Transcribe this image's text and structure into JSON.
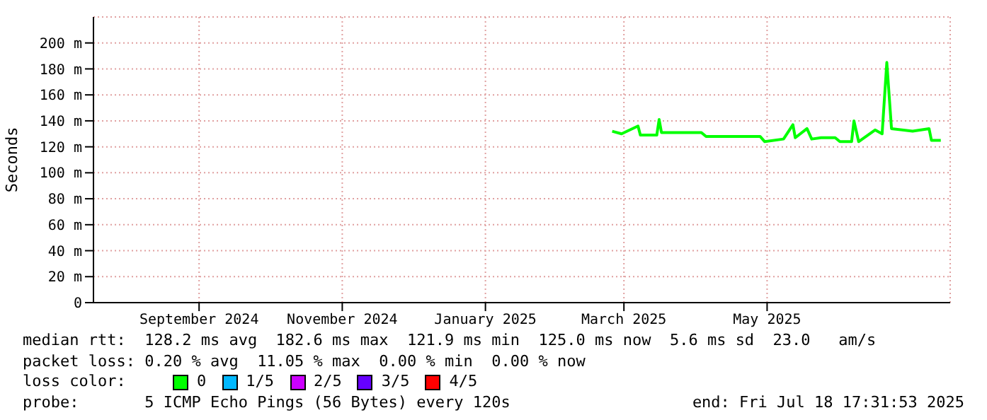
{
  "chart_data": {
    "type": "line",
    "ylabel": "Seconds",
    "x": [
      "2025-02-24",
      "2025-02-28",
      "2025-03-07",
      "2025-03-08",
      "2025-03-15",
      "2025-03-16",
      "2025-03-17",
      "2025-04-03",
      "2025-04-05",
      "2025-04-28",
      "2025-04-30",
      "2025-05-08",
      "2025-05-12",
      "2025-05-13",
      "2025-05-18",
      "2025-05-20",
      "2025-05-24",
      "2025-05-30",
      "2025-06-01",
      "2025-06-06",
      "2025-06-07",
      "2025-06-09",
      "2025-06-16",
      "2025-06-19",
      "2025-06-21",
      "2025-06-23",
      "2025-07-02",
      "2025-07-09",
      "2025-07-10",
      "2025-07-14"
    ],
    "series": [
      {
        "name": "0",
        "color": "#00ff00",
        "values": [
          132,
          130,
          136,
          129,
          129,
          141,
          131,
          131,
          128,
          128,
          124,
          126,
          137,
          127,
          134,
          126,
          127,
          127,
          124,
          124,
          140,
          124,
          133,
          130,
          185,
          134,
          132,
          134,
          125,
          125
        ]
      },
      {
        "name": "1/5",
        "color": "#00b8ff",
        "values": [
          null,
          null,
          null,
          null,
          null,
          null,
          null,
          null,
          null,
          null,
          null,
          null,
          null,
          null,
          null,
          null,
          null,
          null,
          null,
          null,
          null,
          null,
          null,
          null,
          null,
          null,
          null,
          null,
          null,
          null
        ]
      },
      {
        "name": "2/5",
        "color": "#cc00ff",
        "values": [
          null,
          null,
          null,
          null,
          null,
          null,
          null,
          null,
          null,
          null,
          null,
          null,
          null,
          null,
          null,
          null,
          null,
          null,
          null,
          null,
          null,
          null,
          null,
          null,
          null,
          null,
          null,
          null,
          null,
          null
        ]
      },
      {
        "name": "3/5",
        "color": "#6600ff",
        "values": [
          null,
          null,
          null,
          null,
          null,
          null,
          null,
          null,
          null,
          null,
          null,
          null,
          null,
          null,
          null,
          null,
          null,
          null,
          null,
          null,
          null,
          null,
          null,
          null,
          null,
          null,
          null,
          null,
          null,
          null
        ]
      },
      {
        "name": "4/5",
        "color": "#ff0000",
        "values": [
          null,
          null,
          null,
          null,
          null,
          null,
          null,
          null,
          null,
          null,
          null,
          null,
          null,
          null,
          null,
          null,
          null,
          null,
          null,
          null,
          null,
          null,
          null,
          null,
          null,
          null,
          null,
          null,
          null,
          null
        ]
      }
    ],
    "xlim": [
      "2024-07-18",
      "2025-07-18"
    ],
    "xticks": [
      {
        "value": "2024-09-01",
        "label": "September 2024"
      },
      {
        "value": "2024-11-01",
        "label": "November 2024"
      },
      {
        "value": "2025-01-01",
        "label": "January 2025"
      },
      {
        "value": "2025-03-01",
        "label": "March 2025"
      },
      {
        "value": "2025-05-01",
        "label": "May 2025"
      }
    ],
    "ylim": [
      0,
      220
    ],
    "yticks": [
      {
        "value": 0,
        "label": "0"
      },
      {
        "value": 20,
        "label": "20 m"
      },
      {
        "value": 40,
        "label": "40 m"
      },
      {
        "value": 60,
        "label": "60 m"
      },
      {
        "value": 80,
        "label": "80 m"
      },
      {
        "value": 100,
        "label": "100 m"
      },
      {
        "value": 120,
        "label": "120 m"
      },
      {
        "value": 140,
        "label": "140 m"
      },
      {
        "value": 160,
        "label": "160 m"
      },
      {
        "value": 180,
        "label": "180 m"
      },
      {
        "value": 200,
        "label": "200 m"
      }
    ],
    "grid": true,
    "legend": "bottom",
    "legend_title": "loss color:",
    "marker": "none",
    "line_style": "solid",
    "annotations": [
      "median rtt:  128.2 ms avg  182.6 ms max  121.9 ms min  125.0 ms now  5.6 ms sd  23.0   am/s",
      "packet loss: 0.20 % avg  11.05 % max  0.00 % min  0.00 % now",
      "probe:       5 ICMP Echo Pings (56 Bytes) every 120s",
      "end: Fri Jul 18 17:31:53 2025"
    ]
  }
}
